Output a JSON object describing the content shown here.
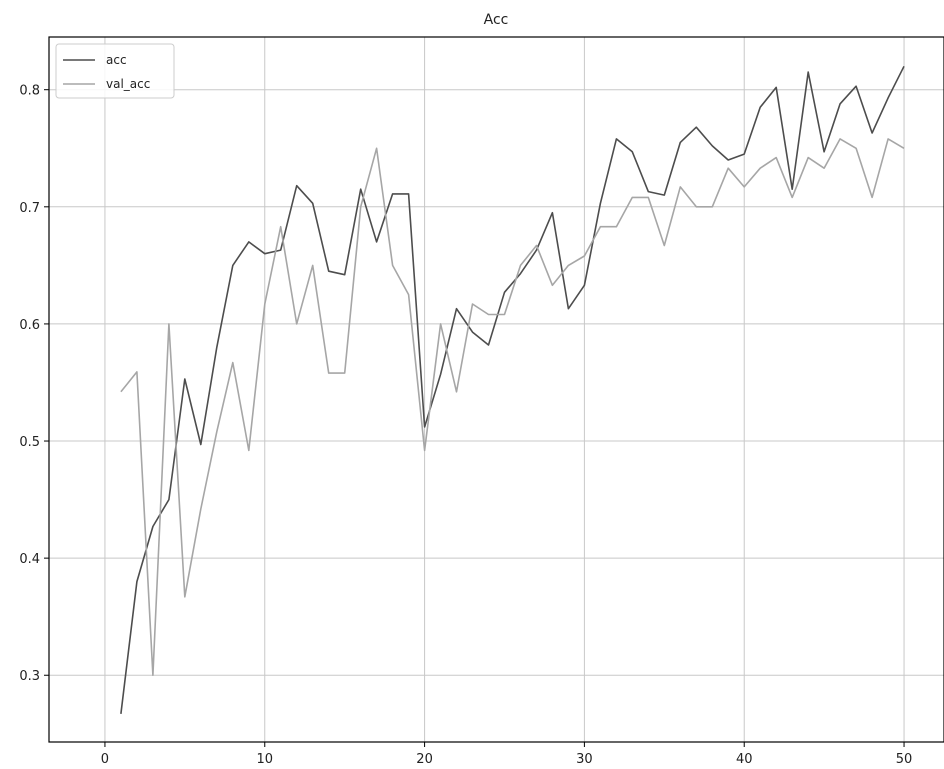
{
  "chart_data": {
    "type": "line",
    "title": "Acc",
    "xlim": [
      -3.5,
      52.5
    ],
    "ylim": [
      0.243,
      0.845
    ],
    "x_ticks": [
      0,
      10,
      20,
      30,
      40,
      50
    ],
    "y_ticks": [
      0.3,
      0.4,
      0.5,
      0.6,
      0.7,
      0.8
    ],
    "grid": true,
    "legend_position": "top-left",
    "x": [
      1,
      2,
      3,
      4,
      5,
      6,
      7,
      8,
      9,
      10,
      11,
      12,
      13,
      14,
      15,
      16,
      17,
      18,
      19,
      20,
      21,
      22,
      23,
      24,
      25,
      26,
      27,
      28,
      29,
      30,
      31,
      32,
      33,
      34,
      35,
      36,
      37,
      38,
      39,
      40,
      41,
      42,
      43,
      44,
      45,
      46,
      47,
      48,
      49,
      50
    ],
    "series": [
      {
        "name": "acc",
        "color": "#4d4d4d",
        "values": [
          0.267,
          0.38,
          0.427,
          0.45,
          0.553,
          0.497,
          0.58,
          0.65,
          0.67,
          0.66,
          0.663,
          0.718,
          0.703,
          0.645,
          0.642,
          0.715,
          0.67,
          0.711,
          0.711,
          0.512,
          0.557,
          0.613,
          0.593,
          0.582,
          0.627,
          0.643,
          0.663,
          0.695,
          0.613,
          0.633,
          0.703,
          0.758,
          0.747,
          0.713,
          0.71,
          0.755,
          0.768,
          0.752,
          0.74,
          0.745,
          0.785,
          0.802,
          0.715,
          0.815,
          0.747,
          0.788,
          0.803,
          0.763,
          0.793,
          0.82
        ]
      },
      {
        "name": "val_acc",
        "color": "#a6a6a6",
        "values": [
          0.542,
          0.559,
          0.3,
          0.6,
          0.367,
          0.442,
          0.508,
          0.567,
          0.492,
          0.617,
          0.683,
          0.6,
          0.65,
          0.558,
          0.558,
          0.7,
          0.75,
          0.65,
          0.625,
          0.492,
          0.6,
          0.542,
          0.617,
          0.608,
          0.608,
          0.65,
          0.667,
          0.633,
          0.65,
          0.658,
          0.683,
          0.683,
          0.708,
          0.708,
          0.667,
          0.717,
          0.7,
          0.7,
          0.733,
          0.717,
          0.733,
          0.742,
          0.708,
          0.742,
          0.733,
          0.758,
          0.75,
          0.708,
          0.758,
          0.75
        ]
      }
    ]
  }
}
